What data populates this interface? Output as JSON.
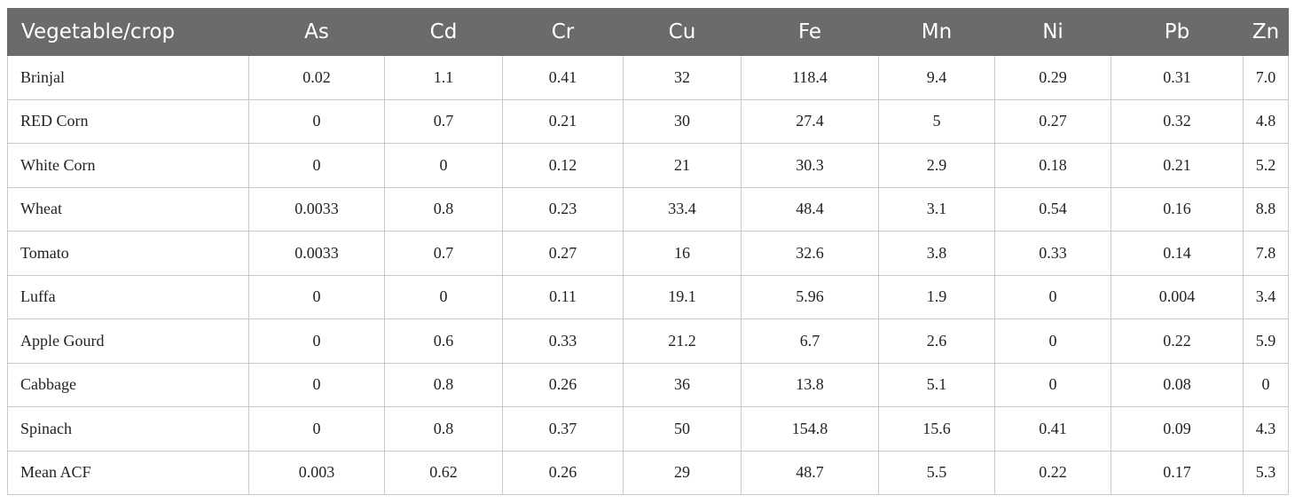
{
  "table": {
    "columns": [
      "Vegetable/crop",
      "As",
      "Cd",
      "Cr",
      "Cu",
      "Fe",
      "Mn",
      "Ni",
      "Pb",
      "Zn"
    ],
    "rows": [
      [
        "Brinjal",
        "0.02",
        "1.1",
        "0.41",
        "32",
        "118.4",
        "9.4",
        "0.29",
        "0.31",
        "7.0"
      ],
      [
        "RED Corn",
        "0",
        "0.7",
        "0.21",
        "30",
        "27.4",
        "5",
        "0.27",
        "0.32",
        "4.8"
      ],
      [
        "White Corn",
        "0",
        "0",
        "0.12",
        "21",
        "30.3",
        "2.9",
        "0.18",
        "0.21",
        "5.2"
      ],
      [
        "Wheat",
        "0.0033",
        "0.8",
        "0.23",
        "33.4",
        "48.4",
        "3.1",
        "0.54",
        "0.16",
        "8.8"
      ],
      [
        "Tomato",
        "0.0033",
        "0.7",
        "0.27",
        "16",
        "32.6",
        "3.8",
        "0.33",
        "0.14",
        "7.8"
      ],
      [
        "Luffa",
        "0",
        "0",
        "0.11",
        "19.1",
        "5.96",
        "1.9",
        "0",
        "0.004",
        "3.4"
      ],
      [
        "Apple Gourd",
        "0",
        "0.6",
        "0.33",
        "21.2",
        "6.7",
        "2.6",
        "0",
        "0.22",
        "5.9"
      ],
      [
        "Cabbage",
        "0",
        "0.8",
        "0.26",
        "36",
        "13.8",
        "5.1",
        "0",
        "0.08",
        "0"
      ],
      [
        "Spinach",
        "0",
        "0.8",
        "0.37",
        "50",
        "154.8",
        "15.6",
        "0.41",
        "0.09",
        "4.3"
      ],
      [
        "Mean ACF",
        "0.003",
        "0.62",
        "0.26",
        "29",
        "48.7",
        "5.5",
        "0.22",
        "0.17",
        "5.3"
      ]
    ]
  }
}
